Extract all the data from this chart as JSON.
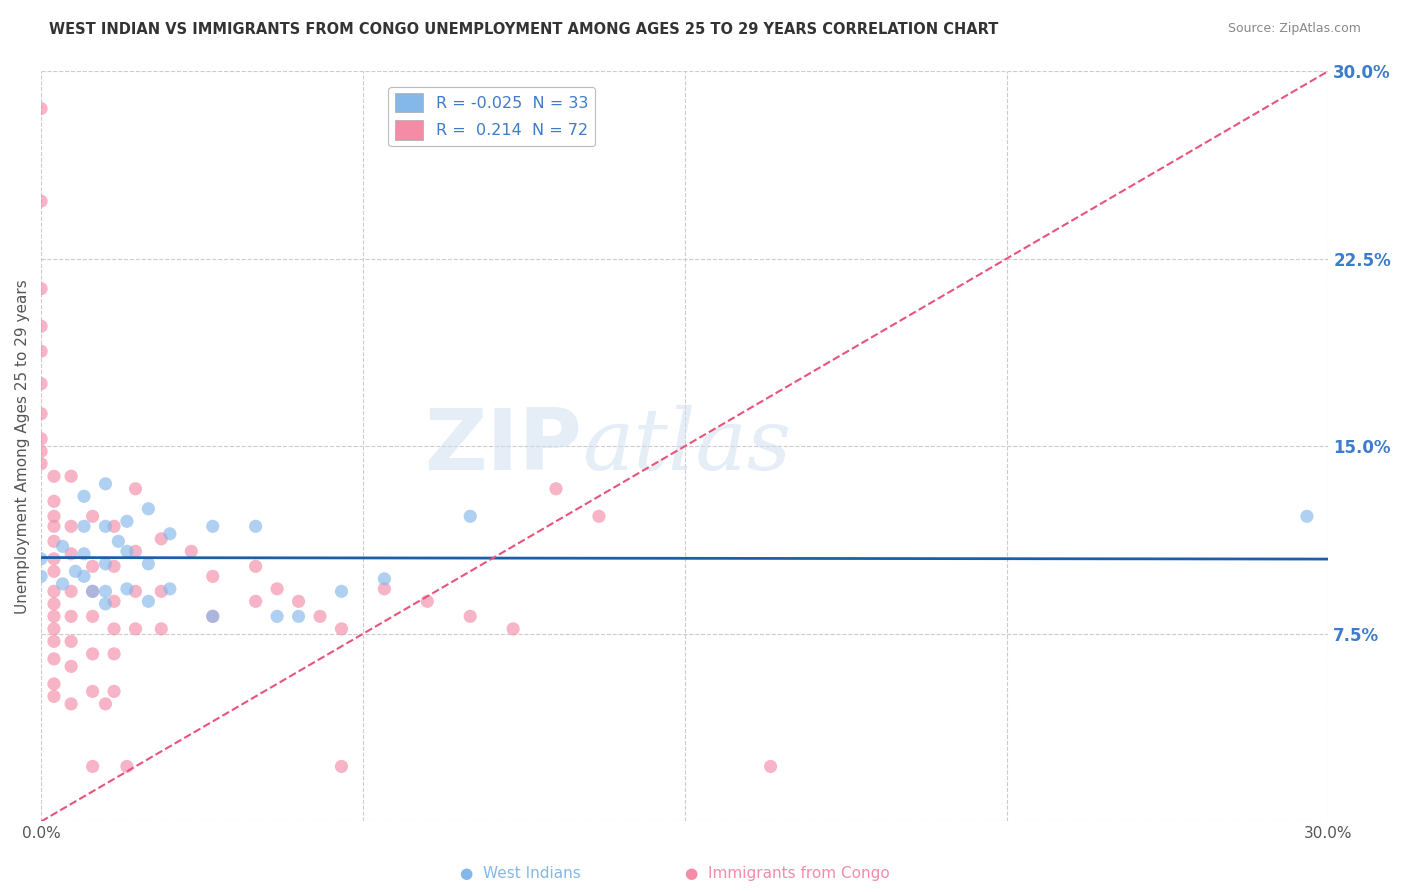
{
  "title": "WEST INDIAN VS IMMIGRANTS FROM CONGO UNEMPLOYMENT AMONG AGES 25 TO 29 YEARS CORRELATION CHART",
  "source": "Source: ZipAtlas.com",
  "xlabel": "",
  "ylabel": "Unemployment Among Ages 25 to 29 years",
  "xlim": [
    0.0,
    0.3
  ],
  "ylim": [
    0.0,
    0.3
  ],
  "grid_color": "#cccccc",
  "background_color": "#ffffff",
  "west_indian_color": "#85b8ea",
  "congo_color": "#f48ca8",
  "west_indian_scatter": [
    [
      0.0,
      0.105
    ],
    [
      0.0,
      0.098
    ],
    [
      0.005,
      0.11
    ],
    [
      0.005,
      0.095
    ],
    [
      0.008,
      0.1
    ],
    [
      0.01,
      0.13
    ],
    [
      0.01,
      0.118
    ],
    [
      0.01,
      0.107
    ],
    [
      0.01,
      0.098
    ],
    [
      0.012,
      0.092
    ],
    [
      0.015,
      0.135
    ],
    [
      0.015,
      0.118
    ],
    [
      0.015,
      0.103
    ],
    [
      0.015,
      0.092
    ],
    [
      0.015,
      0.087
    ],
    [
      0.018,
      0.112
    ],
    [
      0.02,
      0.12
    ],
    [
      0.02,
      0.108
    ],
    [
      0.02,
      0.093
    ],
    [
      0.025,
      0.125
    ],
    [
      0.025,
      0.103
    ],
    [
      0.025,
      0.088
    ],
    [
      0.03,
      0.115
    ],
    [
      0.03,
      0.093
    ],
    [
      0.04,
      0.118
    ],
    [
      0.04,
      0.082
    ],
    [
      0.05,
      0.118
    ],
    [
      0.055,
      0.082
    ],
    [
      0.06,
      0.082
    ],
    [
      0.07,
      0.092
    ],
    [
      0.08,
      0.097
    ],
    [
      0.1,
      0.122
    ],
    [
      0.295,
      0.122
    ]
  ],
  "congo_scatter": [
    [
      0.0,
      0.285
    ],
    [
      0.0,
      0.248
    ],
    [
      0.0,
      0.213
    ],
    [
      0.0,
      0.198
    ],
    [
      0.0,
      0.188
    ],
    [
      0.0,
      0.175
    ],
    [
      0.0,
      0.163
    ],
    [
      0.0,
      0.153
    ],
    [
      0.0,
      0.148
    ],
    [
      0.0,
      0.143
    ],
    [
      0.003,
      0.138
    ],
    [
      0.003,
      0.128
    ],
    [
      0.003,
      0.122
    ],
    [
      0.003,
      0.118
    ],
    [
      0.003,
      0.112
    ],
    [
      0.003,
      0.105
    ],
    [
      0.003,
      0.1
    ],
    [
      0.003,
      0.092
    ],
    [
      0.003,
      0.087
    ],
    [
      0.003,
      0.082
    ],
    [
      0.003,
      0.077
    ],
    [
      0.003,
      0.072
    ],
    [
      0.003,
      0.065
    ],
    [
      0.003,
      0.055
    ],
    [
      0.003,
      0.05
    ],
    [
      0.007,
      0.138
    ],
    [
      0.007,
      0.118
    ],
    [
      0.007,
      0.107
    ],
    [
      0.007,
      0.092
    ],
    [
      0.007,
      0.082
    ],
    [
      0.007,
      0.072
    ],
    [
      0.007,
      0.062
    ],
    [
      0.007,
      0.047
    ],
    [
      0.012,
      0.122
    ],
    [
      0.012,
      0.102
    ],
    [
      0.012,
      0.092
    ],
    [
      0.012,
      0.082
    ],
    [
      0.012,
      0.067
    ],
    [
      0.012,
      0.052
    ],
    [
      0.012,
      0.022
    ],
    [
      0.017,
      0.118
    ],
    [
      0.017,
      0.102
    ],
    [
      0.017,
      0.088
    ],
    [
      0.017,
      0.077
    ],
    [
      0.017,
      0.067
    ],
    [
      0.017,
      0.052
    ],
    [
      0.022,
      0.133
    ],
    [
      0.022,
      0.108
    ],
    [
      0.022,
      0.092
    ],
    [
      0.022,
      0.077
    ],
    [
      0.028,
      0.113
    ],
    [
      0.028,
      0.092
    ],
    [
      0.028,
      0.077
    ],
    [
      0.035,
      0.108
    ],
    [
      0.04,
      0.098
    ],
    [
      0.04,
      0.082
    ],
    [
      0.05,
      0.102
    ],
    [
      0.05,
      0.088
    ],
    [
      0.055,
      0.093
    ],
    [
      0.06,
      0.088
    ],
    [
      0.065,
      0.082
    ],
    [
      0.07,
      0.077
    ],
    [
      0.08,
      0.093
    ],
    [
      0.09,
      0.088
    ],
    [
      0.1,
      0.082
    ],
    [
      0.11,
      0.077
    ],
    [
      0.12,
      0.133
    ],
    [
      0.13,
      0.122
    ],
    [
      0.015,
      0.047
    ],
    [
      0.02,
      0.022
    ],
    [
      0.07,
      0.022
    ],
    [
      0.17,
      0.022
    ]
  ],
  "west_indian_line_color": "#1a5fa8",
  "congo_line_color": "#e8547a",
  "congo_line_style": "--",
  "marker_size": 90,
  "marker_alpha": 0.65,
  "wi_line_y_intercept": 0.1055,
  "wi_line_slope": -0.002,
  "cg_line_x0": 0.0,
  "cg_line_y0": 0.0,
  "cg_line_x1": 0.3,
  "cg_line_y1": 0.3
}
